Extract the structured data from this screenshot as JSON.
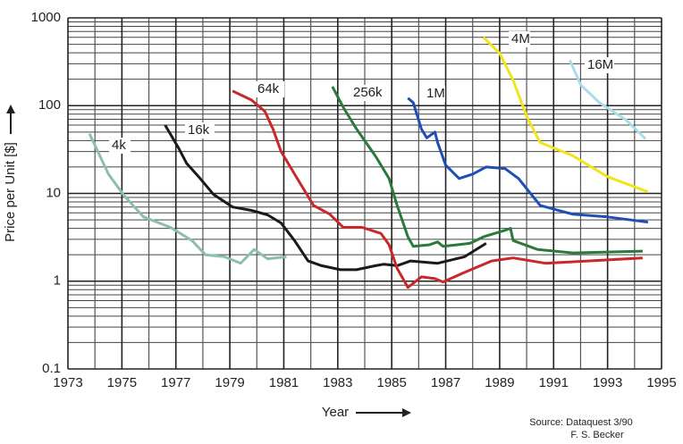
{
  "chart_data": {
    "type": "line",
    "x_label": "Year",
    "y_label": "Price per Unit [$]",
    "annotations": [
      "Source: Dataquest 3/90",
      "F. S. Becker"
    ],
    "xlim": [
      1973,
      1995
    ],
    "xticks": [
      1973,
      1975,
      1977,
      1979,
      1981,
      1983,
      1985,
      1987,
      1989,
      1991,
      1993,
      1995
    ],
    "ylim": [
      0.1,
      1000
    ],
    "yticks": [
      0.1,
      1,
      10,
      100,
      1000
    ],
    "log_y": true,
    "grid": true,
    "minor_grid": true,
    "series": [
      {
        "name": "4k",
        "color": "#8cbfae",
        "x": [
          1973.8,
          1974.5,
          1975.1,
          1975.8,
          1976.8,
          1977.6,
          1978.1,
          1978.8,
          1979.4,
          1979.9,
          1980.4,
          1981.1
        ],
        "values": [
          48,
          16.6,
          9.3,
          5.4,
          4.1,
          2.9,
          2.0,
          1.9,
          1.6,
          2.3,
          1.8,
          1.9
        ]
      },
      {
        "name": "16k",
        "color": "#1a1a1a",
        "x": [
          1976.6,
          1977.1,
          1977.4,
          1977.9,
          1978.4,
          1979.1,
          1979.8,
          1980.4,
          1980.9,
          1981.4,
          1981.9,
          1982.4,
          1983.1,
          1983.7,
          1984.4,
          1984.7,
          1985.2,
          1985.7,
          1986.7,
          1987.7,
          1988.5
        ],
        "values": [
          60,
          33,
          22,
          14.8,
          9.7,
          7.0,
          6.4,
          5.7,
          4.6,
          2.9,
          1.7,
          1.5,
          1.35,
          1.35,
          1.5,
          1.56,
          1.5,
          1.7,
          1.6,
          1.9,
          2.7
        ]
      },
      {
        "name": "64k",
        "color": "#c8282a",
        "x": [
          1979.1,
          1979.8,
          1980.3,
          1980.6,
          1980.9,
          1981.4,
          1982.1,
          1982.7,
          1983.2,
          1983.9,
          1984.6,
          1984.9,
          1985.2,
          1985.6,
          1986.1,
          1986.6,
          1986.9,
          1987.7,
          1988.7,
          1989.5,
          1990.7,
          1994.3
        ],
        "values": [
          147,
          116,
          86,
          54,
          30,
          16.6,
          7.3,
          5.8,
          4.1,
          4.1,
          3.5,
          2.6,
          1.4,
          0.85,
          1.12,
          1.07,
          0.98,
          1.26,
          1.7,
          1.84,
          1.6,
          1.84
        ]
      },
      {
        "name": "256k",
        "color": "#2b7a3c",
        "x": [
          1982.8,
          1983.2,
          1983.7,
          1984.4,
          1984.9,
          1985.2,
          1985.6,
          1985.8,
          1986.4,
          1986.7,
          1986.9,
          1987.9,
          1988.4,
          1989.2,
          1989.4,
          1989.5,
          1990.4,
          1991.7,
          1994.3
        ],
        "values": [
          165,
          96,
          54,
          26.5,
          14.8,
          7.3,
          3.2,
          2.5,
          2.6,
          2.8,
          2.5,
          2.7,
          3.2,
          3.8,
          4.0,
          2.9,
          2.3,
          2.1,
          2.2
        ]
      },
      {
        "name": "1M",
        "color": "#1f4fb4",
        "x": [
          1985.6,
          1985.8,
          1986.1,
          1986.3,
          1986.6,
          1986.7,
          1987.0,
          1987.5,
          1988.0,
          1988.5,
          1989.2,
          1989.7,
          1990.5,
          1991.7,
          1993.0,
          1994.5
        ],
        "values": [
          122,
          108,
          54,
          43,
          50,
          38,
          21,
          14.8,
          16.6,
          20,
          19.2,
          14.8,
          7.3,
          5.8,
          5.4,
          4.7
        ]
      },
      {
        "name": "4M",
        "color": "#f2e41a",
        "x": [
          1988.4,
          1989.0,
          1989.5,
          1990.0,
          1990.5,
          1991.7,
          1993.0,
          1994.5
        ],
        "values": [
          600,
          395,
          195,
          76,
          38,
          27,
          15.5,
          10.4
        ]
      },
      {
        "name": "16M",
        "color": "#a8dde6",
        "x": [
          1991.6,
          1992.0,
          1992.7,
          1993.7,
          1994.4
        ],
        "values": [
          330,
          173,
          108,
          68,
          42
        ]
      }
    ]
  }
}
